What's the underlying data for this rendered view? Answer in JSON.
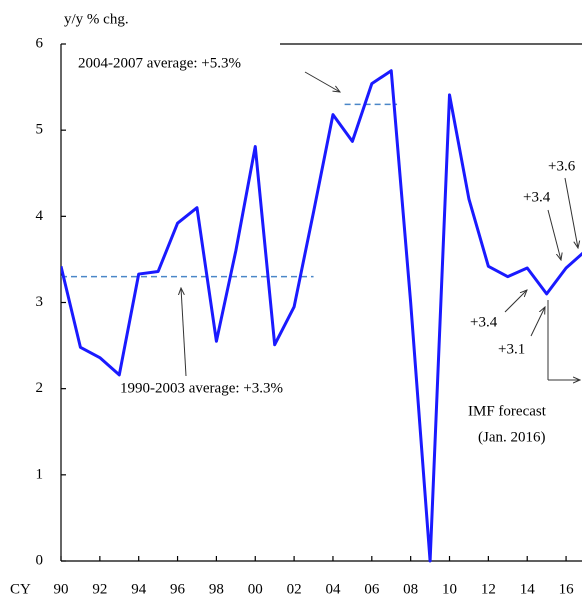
{
  "chart_data": {
    "type": "line",
    "y_axis_label": "y/y % chg.",
    "x_prefix": "CY",
    "x": [
      1990,
      1991,
      1992,
      1993,
      1994,
      1995,
      1996,
      1997,
      1998,
      1999,
      2000,
      2001,
      2002,
      2003,
      2004,
      2005,
      2006,
      2007,
      2008,
      2009,
      2010,
      2011,
      2012,
      2013,
      2014,
      2015,
      2016,
      2017
    ],
    "series": [
      {
        "color": "#1a1aff",
        "values": [
          3.42,
          2.48,
          2.36,
          2.16,
          3.33,
          3.36,
          3.92,
          4.1,
          2.55,
          3.6,
          4.81,
          2.51,
          2.95,
          4.05,
          5.18,
          4.87,
          5.54,
          5.69,
          3.0,
          0,
          5.41,
          4.2,
          3.42,
          3.3,
          3.4,
          3.1,
          3.4,
          3.6
        ]
      }
    ],
    "xlim": [
      1990,
      2016.82
    ],
    "ylim": [
      0,
      6
    ],
    "yticks": [
      0,
      1,
      2,
      3,
      4,
      5,
      6
    ],
    "xticks": [
      {
        "value": 1990,
        "label": "90"
      },
      {
        "value": 1992,
        "label": "92"
      },
      {
        "value": 1994,
        "label": "94"
      },
      {
        "value": 1996,
        "label": "96"
      },
      {
        "value": 1998,
        "label": "98"
      },
      {
        "value": 2000,
        "label": "00"
      },
      {
        "value": 2002,
        "label": "02"
      },
      {
        "value": 2004,
        "label": "04"
      },
      {
        "value": 2006,
        "label": "06"
      },
      {
        "value": 2008,
        "label": "08"
      },
      {
        "value": 2010,
        "label": "10"
      },
      {
        "value": 2012,
        "label": "12"
      },
      {
        "value": 2014,
        "label": "14"
      },
      {
        "value": 2016,
        "label": "16"
      }
    ],
    "reference_lines": [
      {
        "value": 3.3,
        "from": 1990,
        "to": 2003,
        "color": "#4a86c8",
        "label": "1990-2003 average: +3.3%"
      },
      {
        "value": 5.3,
        "from": 2004.6,
        "to": 2007.3,
        "color": "#4a86c8",
        "label": "2004-2007 average: +5.3%"
      }
    ],
    "annotations": [
      "+3.6",
      "+3.4",
      "+3.4",
      "+3.1",
      "IMF forecast",
      "(Jan. 2016)"
    ]
  }
}
